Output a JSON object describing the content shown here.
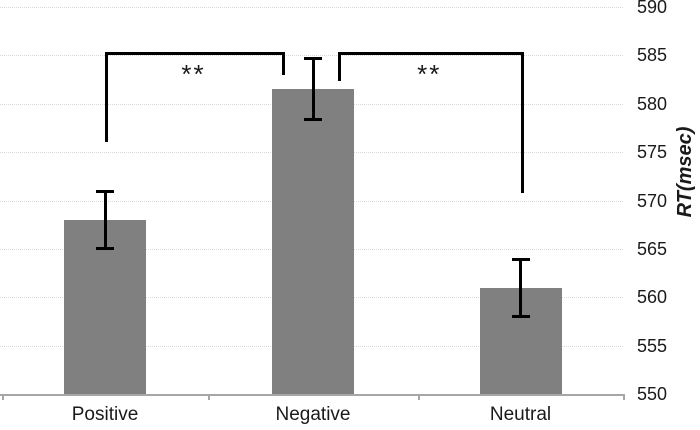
{
  "chart_data": {
    "type": "bar",
    "title": "",
    "categories": [
      "Positive",
      "Negative",
      "Neutral"
    ],
    "values": [
      568,
      581.5,
      561
    ],
    "errors": [
      3,
      3.2,
      3
    ],
    "xlabel": "",
    "ylabel": "RT(msec)",
    "ylim": [
      550,
      590
    ],
    "y_ticks": [
      550,
      555,
      560,
      565,
      570,
      575,
      580,
      585,
      590
    ],
    "grid": "horizontal-dotted",
    "legend": "none",
    "axis_side": "right",
    "annotations": [
      {
        "pair": [
          "Positive",
          "Negative"
        ],
        "label": "**",
        "top": 585.3,
        "left_end": 576.0,
        "right_end": 583.0,
        "left_anchor": "center",
        "right_anchor": "inner-left"
      },
      {
        "pair": [
          "Negative",
          "Neutral"
        ],
        "label": "**",
        "top": 585.3,
        "left_end": 582.3,
        "right_end": 570.8,
        "left_anchor": "inner-right",
        "right_anchor": "center"
      }
    ]
  },
  "colors": {
    "bar": "#808080",
    "gridline": "#d9d9d9",
    "axis_line": "#a6a6a6",
    "text": "#1a1a1a",
    "annotation": "#000000"
  }
}
